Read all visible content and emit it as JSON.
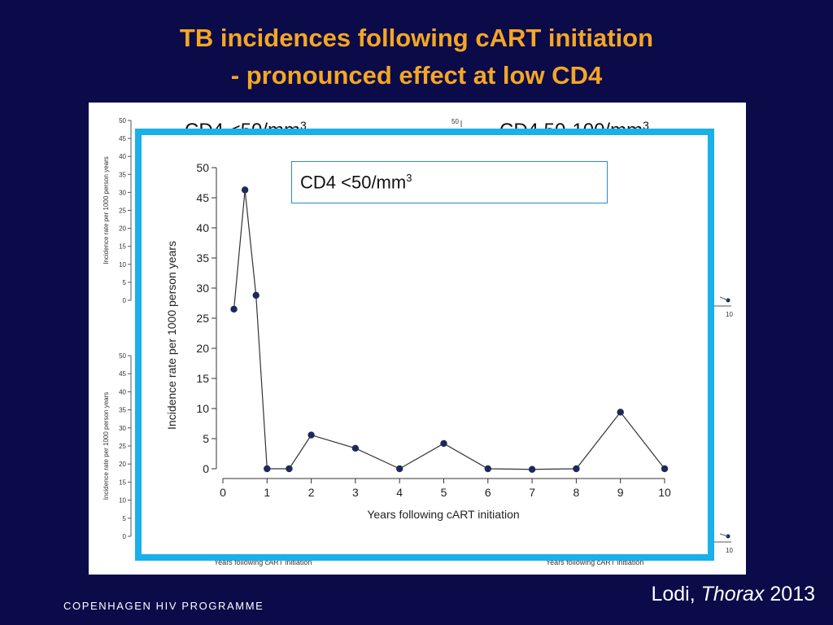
{
  "slide": {
    "title_line1": "TB incidences following cART initiation",
    "title_line2": "- pronounced effect at low CD4",
    "citation_author": "Lodi, ",
    "citation_journal": "Thorax",
    "citation_year": " 2013",
    "footer": "COPENHAGEN HIV PROGRAMME",
    "accent_color": "#f5a623",
    "frame_color": "#1ab0ea",
    "background_color": "#0b0b4a"
  },
  "background_panels": {
    "left_heading": "CD4 <50/mm",
    "right_heading": "CD4 50-100/mm",
    "heading_superscript": "3",
    "ylabel": "Incidence rate per 1000 person years",
    "xlabel": "Years following cART initiation",
    "y_ticks": [
      "50",
      "45",
      "40",
      "35",
      "30",
      "25",
      "20",
      "15",
      "10",
      "5",
      "0"
    ],
    "x_tick_last": "10",
    "right_top_tick": "50"
  },
  "legend": {
    "label": "CD4 <50/mm",
    "superscript": "3"
  },
  "chart_data": {
    "type": "line",
    "title": "",
    "xlabel": "Years following cART initiation",
    "ylabel": "Incidence rate per 1000 person years",
    "xlim": [
      0,
      10
    ],
    "ylim": [
      0,
      50
    ],
    "x_ticks": [
      0,
      1,
      2,
      3,
      4,
      5,
      6,
      7,
      8,
      9,
      10
    ],
    "y_ticks": [
      0,
      5,
      10,
      15,
      20,
      25,
      30,
      35,
      40,
      45,
      50
    ],
    "grid": false,
    "legend_position": "top-center",
    "series": [
      {
        "name": "CD4 <50/mm3",
        "color": "#1a2a5c",
        "x": [
          0.25,
          0.5,
          0.75,
          1,
          1.5,
          2,
          3,
          4,
          5,
          6,
          7,
          8,
          9,
          10
        ],
        "y": [
          26.5,
          46.3,
          28.8,
          0,
          0,
          5.6,
          3.4,
          0,
          4.2,
          0,
          -0.1,
          0,
          9.4,
          0
        ]
      }
    ]
  }
}
